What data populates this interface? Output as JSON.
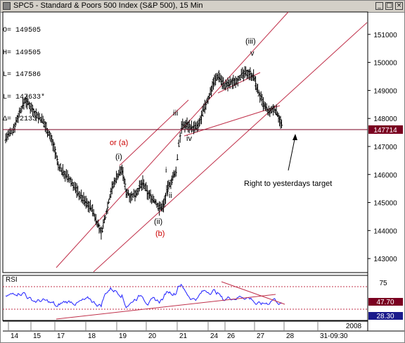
{
  "window": {
    "title": "SPC5 - Standard & Poors 500 Index (S&P 500), 15 Min",
    "buttons": [
      "_",
      "□",
      "×"
    ]
  },
  "info_box": [
    {
      "label": "O=",
      "value": "149505"
    },
    {
      "label": "H=",
      "value": "149505"
    },
    {
      "label": "L=",
      "value": "147586"
    },
    {
      "label": "L=",
      "value": "147633*"
    },
    {
      "label": "Δ=",
      "value": "-2133"
    }
  ],
  "chart_data": {
    "type": "bar",
    "subtype": "ohlc",
    "price_axis": {
      "ticks": [
        "151000",
        "150000",
        "149000",
        "148000",
        "147000",
        "146000",
        "145000",
        "144000",
        "143000"
      ],
      "last_price_label": "147714",
      "last_price": 147714,
      "ylim": [
        142500,
        151800
      ]
    },
    "x_axis": {
      "tick_labels": [
        "14",
        "15",
        "17",
        "18",
        "19",
        "20",
        "21",
        "24",
        "26",
        "27",
        "28",
        "31-09:30"
      ],
      "year_label": "2008"
    },
    "price_series": [
      {
        "x": 0,
        "y": 147300
      },
      {
        "x": 10,
        "y": 147550
      },
      {
        "x": 20,
        "y": 148200
      },
      {
        "x": 28,
        "y": 148650
      },
      {
        "x": 34,
        "y": 148500
      },
      {
        "x": 44,
        "y": 148150
      },
      {
        "x": 54,
        "y": 147900
      },
      {
        "x": 62,
        "y": 147500
      },
      {
        "x": 70,
        "y": 147000
      },
      {
        "x": 76,
        "y": 146300
      },
      {
        "x": 86,
        "y": 146000
      },
      {
        "x": 96,
        "y": 145700
      },
      {
        "x": 106,
        "y": 145300
      },
      {
        "x": 116,
        "y": 145000
      },
      {
        "x": 124,
        "y": 144800
      },
      {
        "x": 132,
        "y": 144300
      },
      {
        "x": 138,
        "y": 143900
      },
      {
        "x": 144,
        "y": 144500
      },
      {
        "x": 152,
        "y": 145400
      },
      {
        "x": 160,
        "y": 145900
      },
      {
        "x": 168,
        "y": 146200
      },
      {
        "x": 174,
        "y": 145400
      },
      {
        "x": 182,
        "y": 145200
      },
      {
        "x": 190,
        "y": 145400
      },
      {
        "x": 198,
        "y": 145700
      },
      {
        "x": 206,
        "y": 145300
      },
      {
        "x": 214,
        "y": 145100
      },
      {
        "x": 222,
        "y": 144800
      },
      {
        "x": 228,
        "y": 144900
      },
      {
        "x": 234,
        "y": 145500
      },
      {
        "x": 240,
        "y": 145800
      },
      {
        "x": 246,
        "y": 146100
      },
      {
        "x": 250,
        "y": 147100
      },
      {
        "x": 254,
        "y": 147700
      },
      {
        "x": 262,
        "y": 147800
      },
      {
        "x": 270,
        "y": 147650
      },
      {
        "x": 278,
        "y": 147700
      },
      {
        "x": 286,
        "y": 148300
      },
      {
        "x": 294,
        "y": 148800
      },
      {
        "x": 300,
        "y": 149300
      },
      {
        "x": 308,
        "y": 149550
      },
      {
        "x": 316,
        "y": 149150
      },
      {
        "x": 324,
        "y": 149250
      },
      {
        "x": 332,
        "y": 149350
      },
      {
        "x": 342,
        "y": 149550
      },
      {
        "x": 350,
        "y": 149650
      },
      {
        "x": 358,
        "y": 149500
      },
      {
        "x": 364,
        "y": 149000
      },
      {
        "x": 372,
        "y": 148500
      },
      {
        "x": 380,
        "y": 148200
      },
      {
        "x": 388,
        "y": 148350
      },
      {
        "x": 394,
        "y": 148100
      },
      {
        "x": 400,
        "y": 147650
      }
    ],
    "rsi": {
      "label": "RSI",
      "ticks": [
        "75",
        "47.70",
        "28.30"
      ],
      "current": 28.3,
      "secondary": 47.7,
      "upper": 75,
      "lower": 25
    },
    "annotations": [
      {
        "text": "or (a)",
        "color": "#cc0000"
      },
      {
        "text": "(i)",
        "color": "#000000"
      },
      {
        "text": "(ii)",
        "color": "#000000"
      },
      {
        "text": "(b)",
        "color": "#cc0000"
      },
      {
        "text": "i",
        "color": "#000000"
      },
      {
        "text": "ii",
        "color": "#000000"
      },
      {
        "text": "iii",
        "color": "#000000"
      },
      {
        "text": "iv",
        "color": "#000000"
      },
      {
        "text": "(iii)",
        "color": "#000000"
      },
      {
        "text": "v",
        "color": "#000000"
      },
      {
        "text": "Right to yesterdays target",
        "color": "#000000"
      }
    ],
    "colors": {
      "price": "#000000",
      "channel": "#c0304a",
      "rsi": "#2020ff",
      "last_price_tag": "#7a0020"
    }
  }
}
